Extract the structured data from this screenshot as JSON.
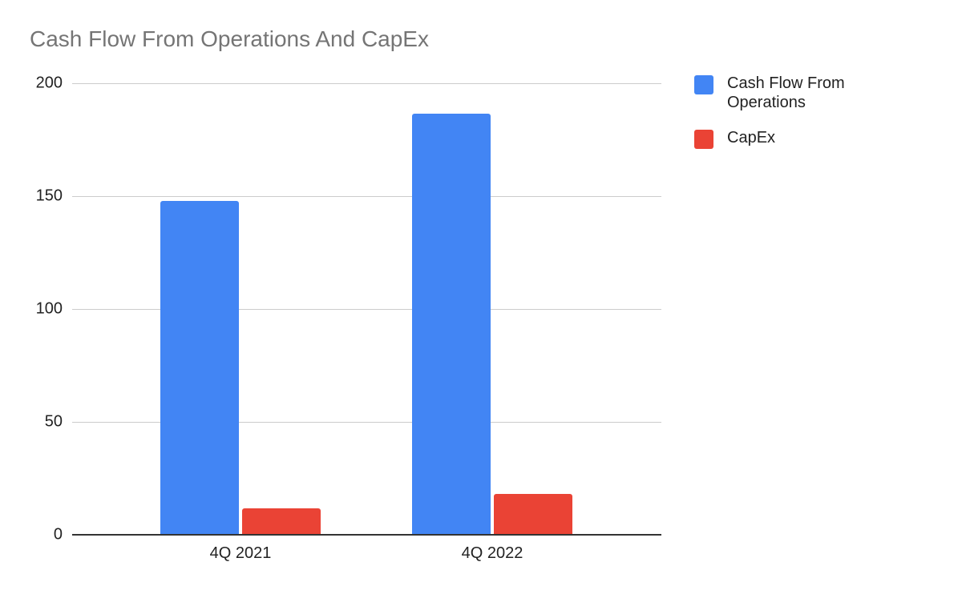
{
  "chart_data": {
    "type": "bar",
    "title": "Cash Flow From Operations And CapEx",
    "xlabel": "",
    "ylabel": "",
    "categories": [
      "4Q 2021",
      "4Q 2022"
    ],
    "series": [
      {
        "name": "Cash Flow From Operations",
        "color": "#4285f4",
        "values": [
          147.5,
          186
        ]
      },
      {
        "name": "CapEx",
        "color": "#ea4335",
        "values": [
          11.3,
          17.7
        ]
      }
    ],
    "ylim": [
      0,
      200
    ],
    "yticks": [
      "0",
      "50",
      "100",
      "150",
      "200"
    ],
    "grid": true,
    "legend_position": "right"
  }
}
